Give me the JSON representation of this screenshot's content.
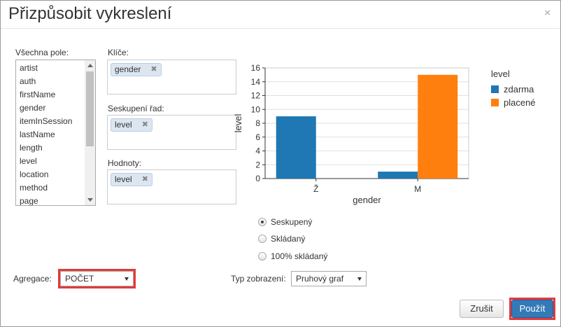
{
  "dialog": {
    "title": "Přizpůsobit vykreslení",
    "close_glyph": "×"
  },
  "fields": {
    "label": "Všechna pole:",
    "items": [
      "artist",
      "auth",
      "firstName",
      "gender",
      "itemInSession",
      "lastName",
      "length",
      "level",
      "location",
      "method",
      "page"
    ]
  },
  "keys": {
    "label": "Klíče:",
    "chip": "gender"
  },
  "series_group": {
    "label": "Seskupení řad:",
    "chip": "level"
  },
  "values": {
    "label": "Hodnoty:",
    "chip": "level"
  },
  "chip_remove_glyph": "✖",
  "chart_data": {
    "type": "bar",
    "categories": [
      "Ž",
      "M"
    ],
    "series": [
      {
        "name": "zdarma",
        "values": [
          9,
          1
        ],
        "color": "#1f77b4"
      },
      {
        "name": "placené",
        "values": [
          0,
          15
        ],
        "color": "#ff7f0e"
      }
    ],
    "xlabel": "gender",
    "ylabel": "level",
    "ylim": [
      0,
      16
    ],
    "yticks": [
      0,
      2,
      4,
      6,
      8,
      10,
      12,
      14,
      16
    ],
    "legend_title": "level",
    "legend_position": "right",
    "grid": true
  },
  "chart_mode": {
    "options": [
      "Seskupený",
      "Skládaný",
      "100% skládaný"
    ],
    "selected": "Seskupený"
  },
  "aggregation": {
    "label": "Agregace:",
    "value": "POČET"
  },
  "display_type": {
    "label": "Typ zobrazení:",
    "value": "Pruhový graf"
  },
  "buttons": {
    "cancel": "Zrušit",
    "apply": "Použít"
  }
}
